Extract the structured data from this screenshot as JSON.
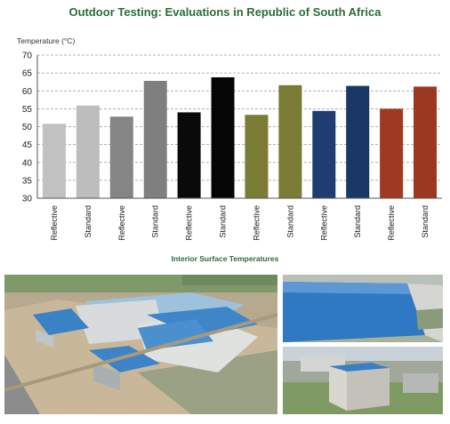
{
  "chart_data": {
    "type": "bar",
    "title": "Outdoor Testing: Evaluations in Republic of South Africa",
    "ylabel": "Temperature (°C)",
    "xlabel": "",
    "ylim": [
      30,
      70
    ],
    "yticks": [
      30,
      35,
      40,
      45,
      50,
      55,
      60,
      65,
      70
    ],
    "grid": true,
    "categories": [
      "Reflective",
      "Standard",
      "Reflective",
      "Standard",
      "Reflective",
      "Standard",
      "Reflective",
      "Standard",
      "Reflective",
      "Standard",
      "Reflective",
      "Standard"
    ],
    "values": [
      50.8,
      55.9,
      52.8,
      62.8,
      54.0,
      63.8,
      53.3,
      61.6,
      54.4,
      61.4,
      55.0,
      61.2
    ],
    "colors": [
      "#c2c2c2",
      "#bdbdbd",
      "#858585",
      "#7f7f7f",
      "#0a0a0a",
      "#050505",
      "#7a7c35",
      "#7a7c35",
      "#1f3d70",
      "#1a3768",
      "#9e3a22",
      "#9a3820"
    ]
  },
  "photos_caption": "Interior Surface Temperatures"
}
